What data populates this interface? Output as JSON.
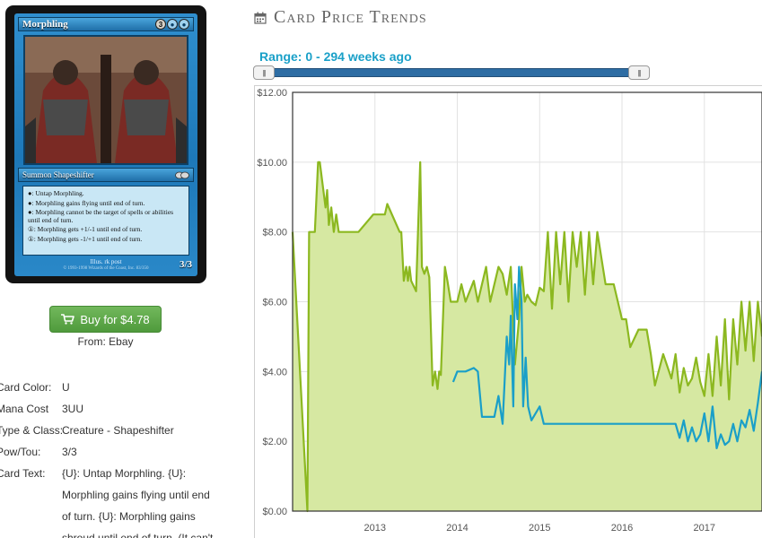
{
  "card": {
    "name": "Morphling",
    "mana": [
      "3",
      "U",
      "U"
    ],
    "type_line": "Summon Shapeshifter",
    "rules": [
      "●: Untap Morphling.",
      "●: Morphling gains flying until end of turn.",
      "●: Morphling cannot be the target of spells or abilities until end of turn.",
      "①: Morphling gets +1/-1 until end of turn.",
      "①: Morphling gets -1/+1 until end of turn."
    ],
    "illus": "Illus. rk post",
    "copyright": "© 1993-1998 Wizards of the Coast, Inc. 83/350",
    "pt": "3/3"
  },
  "buy": {
    "label": "Buy for $4.78",
    "from_label": "From:",
    "from_value": "Ebay"
  },
  "details": [
    {
      "label": "Card Color:",
      "value": "U"
    },
    {
      "label": "Mana Cost",
      "value": "3UU"
    },
    {
      "label": "Type & Class:",
      "value": "Creature - Shapeshifter"
    },
    {
      "label": "Pow/Tou:",
      "value": "3/3"
    },
    {
      "label": "Card Text:",
      "value": "{U}: Untap Morphling. {U}: Morphling gains flying until end of turn. {U}: Morphling gains shroud until end of turn. (It can't"
    }
  ],
  "header": {
    "title": "Card Price Trends",
    "icon": "calendar-icon"
  },
  "range": {
    "text": "Range: 0 - 294 weeks ago",
    "handle_glyph": "|||",
    "start_weeks_ago": 294,
    "end_weeks_ago": 0
  },
  "colors": {
    "green": "#8cb820",
    "green_fill": "#d6e8a2",
    "blue": "#1a9fc8",
    "range_text": "#1aa0c8",
    "buy_button": "#5ca947"
  },
  "chart_data": {
    "type": "line",
    "xlabel": "",
    "ylabel": "",
    "ylim": [
      0,
      12
    ],
    "xlim": [
      2012.0,
      2017.7
    ],
    "y_ticks": [
      "$0.00",
      "$2.00",
      "$4.00",
      "$6.00",
      "$8.00",
      "$10.00",
      "$12.00"
    ],
    "y_tick_values": [
      0,
      2,
      4,
      6,
      8,
      10,
      12
    ],
    "x_ticks": [
      "2013",
      "2014",
      "2015",
      "2016",
      "2017"
    ],
    "x_tick_values": [
      2013,
      2014,
      2015,
      2016,
      2017
    ],
    "grid": true,
    "legend": "none",
    "series": [
      {
        "color": "#8cb820",
        "fill": true,
        "x": [
          2012.0,
          2012.18,
          2012.2,
          2012.27,
          2012.31,
          2012.33,
          2012.4,
          2012.42,
          2012.44,
          2012.47,
          2012.5,
          2012.53,
          2012.56,
          2012.6,
          2012.62,
          2012.75,
          2012.8,
          2012.98,
          2013.12,
          2013.15,
          2013.3,
          2013.32,
          2013.35,
          2013.38,
          2013.4,
          2013.42,
          2013.44,
          2013.5,
          2013.55,
          2013.57,
          2013.6,
          2013.63,
          2013.66,
          2013.7,
          2013.73,
          2013.76,
          2013.78,
          2013.8,
          2013.85,
          2013.88,
          2013.92,
          2013.95,
          2014.0,
          2014.05,
          2014.1,
          2014.2,
          2014.25,
          2014.35,
          2014.4,
          2014.5,
          2014.55,
          2014.6,
          2014.65,
          2014.7,
          2014.75,
          2014.78,
          2014.82,
          2014.85,
          2014.9,
          2014.95,
          2015.0,
          2015.05,
          2015.1,
          2015.15,
          2015.2,
          2015.25,
          2015.3,
          2015.35,
          2015.4,
          2015.45,
          2015.5,
          2015.55,
          2015.6,
          2015.65,
          2015.7,
          2015.8,
          2015.9,
          2016.0,
          2016.05,
          2016.1,
          2016.2,
          2016.3,
          2016.35,
          2016.4,
          2016.5,
          2016.6,
          2016.65,
          2016.7,
          2016.75,
          2016.8,
          2016.85,
          2016.9,
          2016.95,
          2017.0,
          2017.05,
          2017.1,
          2017.15,
          2017.2,
          2017.25,
          2017.3,
          2017.35,
          2017.4,
          2017.45,
          2017.5,
          2017.55,
          2017.6,
          2017.65,
          2017.7
        ],
        "y": [
          8.0,
          0.0,
          8.0,
          8.0,
          10.0,
          10.0,
          8.7,
          9.2,
          8.2,
          8.7,
          8.0,
          8.5,
          8.0,
          8.0,
          8.0,
          8.0,
          8.0,
          8.5,
          8.5,
          8.8,
          8.0,
          8.0,
          6.6,
          7.0,
          6.6,
          7.0,
          6.6,
          6.3,
          10.0,
          7.0,
          6.8,
          7.0,
          6.7,
          3.6,
          4.0,
          3.5,
          4.0,
          3.9,
          7.0,
          6.6,
          6.0,
          6.0,
          6.0,
          6.5,
          6.0,
          6.6,
          6.0,
          7.0,
          6.0,
          7.0,
          6.8,
          6.2,
          7.0,
          4.2,
          5.5,
          7.0,
          6.0,
          6.2,
          6.0,
          5.9,
          6.4,
          6.3,
          8.0,
          5.8,
          8.0,
          6.5,
          8.0,
          6.0,
          8.0,
          7.0,
          8.0,
          6.2,
          8.0,
          6.5,
          8.0,
          6.5,
          6.5,
          5.5,
          5.5,
          4.7,
          5.2,
          5.2,
          4.5,
          3.6,
          4.5,
          3.8,
          4.5,
          3.4,
          4.1,
          3.6,
          3.8,
          4.4,
          3.7,
          3.3,
          4.5,
          3.3,
          5.0,
          3.6,
          5.5,
          3.2,
          5.5,
          4.2,
          6.0,
          4.6,
          6.0,
          4.3,
          6.0,
          5.0
        ]
      },
      {
        "color": "#1a9fc8",
        "fill": false,
        "x": [
          2013.95,
          2014.0,
          2014.1,
          2014.2,
          2014.25,
          2014.3,
          2014.45,
          2014.5,
          2014.55,
          2014.6,
          2014.63,
          2014.65,
          2014.68,
          2014.7,
          2014.73,
          2014.75,
          2014.78,
          2014.8,
          2014.83,
          2014.86,
          2014.9,
          2015.0,
          2015.05,
          2015.1,
          2015.2,
          2015.5,
          2015.8,
          2016.0,
          2016.15,
          2016.3,
          2016.5,
          2016.65,
          2016.7,
          2016.75,
          2016.8,
          2016.85,
          2016.9,
          2016.95,
          2017.0,
          2017.05,
          2017.1,
          2017.15,
          2017.2,
          2017.25,
          2017.3,
          2017.35,
          2017.4,
          2017.45,
          2017.5,
          2017.55,
          2017.6,
          2017.65,
          2017.7
        ],
        "y": [
          3.7,
          4.0,
          4.0,
          4.1,
          4.0,
          2.7,
          2.7,
          3.3,
          2.5,
          5.0,
          4.2,
          5.6,
          3.0,
          6.5,
          5.5,
          7.0,
          6.0,
          3.0,
          4.4,
          3.0,
          2.6,
          3.0,
          2.5,
          2.5,
          2.5,
          2.5,
          2.5,
          2.5,
          2.5,
          2.5,
          2.5,
          2.5,
          2.1,
          2.6,
          2.0,
          2.4,
          2.0,
          2.2,
          2.8,
          2.0,
          3.0,
          1.8,
          2.2,
          1.9,
          2.0,
          2.5,
          2.0,
          2.6,
          2.4,
          2.9,
          2.3,
          3.1,
          4.0
        ]
      }
    ]
  }
}
